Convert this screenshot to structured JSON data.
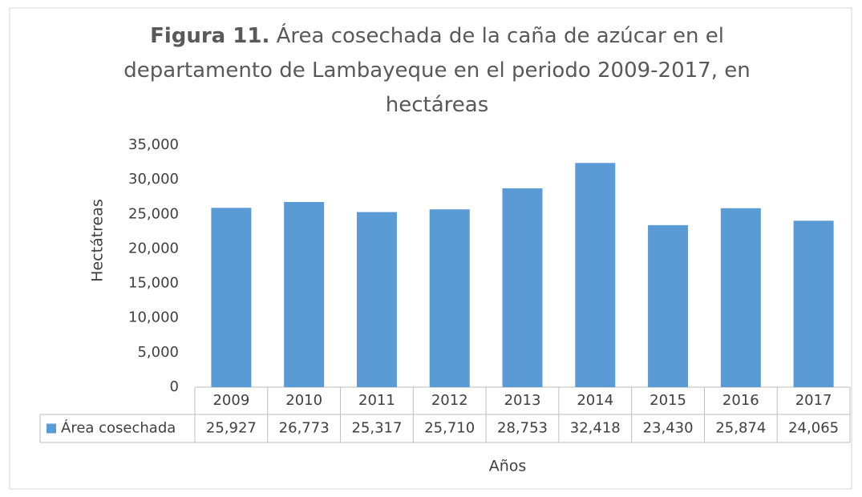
{
  "chart_data": {
    "type": "bar",
    "title_label": "Figura 11.",
    "title": "Área cosechada de la caña de azúcar en el departamento de Lambayeque en el periodo 2009-2017, en hectáreas",
    "x_label": "Años",
    "y_label": "Hectátreas",
    "categories": [
      "2009",
      "2010",
      "2011",
      "2012",
      "2013",
      "2014",
      "2015",
      "2016",
      "2017"
    ],
    "series": [
      {
        "name": "Área cosechada",
        "color": "#5b9bd5",
        "values": [
          25927,
          26773,
          25317,
          25710,
          28753,
          32418,
          23430,
          25874,
          24065
        ],
        "value_labels": [
          "25,927",
          "26,773",
          "25,317",
          "25,710",
          "28,753",
          "32,418",
          "23,430",
          "25,874",
          "24,065"
        ]
      }
    ],
    "ylim": [
      0,
      35000
    ],
    "yticks": [
      0,
      {
        "value": 5000,
        "label": "5,000"
      },
      {
        "value": 10000,
        "label": "10,000"
      },
      {
        "value": 15000,
        "label": "15,000"
      },
      {
        "value": 20000,
        "label": "20,000"
      },
      {
        "value": 25000,
        "label": "25,000"
      },
      {
        "value": 30000,
        "label": "30,000"
      },
      {
        "value": 35000,
        "label": "35,000"
      }
    ],
    "grid": false,
    "legend": "data-table"
  }
}
